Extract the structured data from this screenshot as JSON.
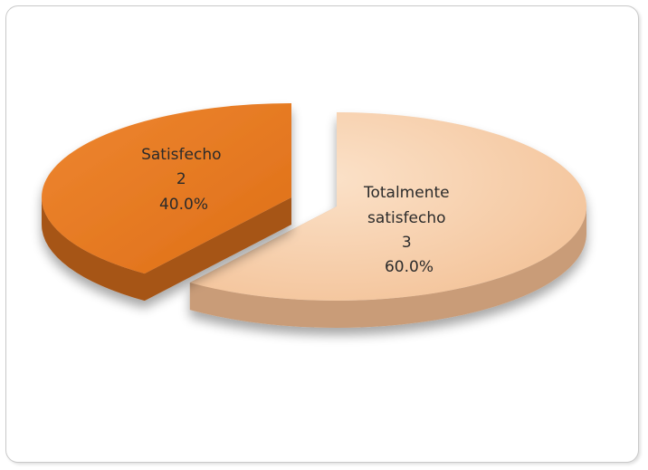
{
  "chart_data": {
    "type": "pie",
    "three_d": true,
    "exploded": true,
    "slices": [
      {
        "label": "Totalmente satisfecho",
        "label_lines": [
          "Totalmente",
          "satisfecho"
        ],
        "value": 3,
        "value_label": "3",
        "percent": 60.0,
        "percent_label": "60.0%",
        "color": "#f6c9a0",
        "side_color": "#c99c78"
      },
      {
        "label": "Satisfecho",
        "label_lines": [
          "Satisfecho"
        ],
        "value": 2,
        "value_label": "2",
        "percent": 40.0,
        "percent_label": "40.0%",
        "color": "#e6781f",
        "side_color": "#a65416"
      }
    ]
  }
}
